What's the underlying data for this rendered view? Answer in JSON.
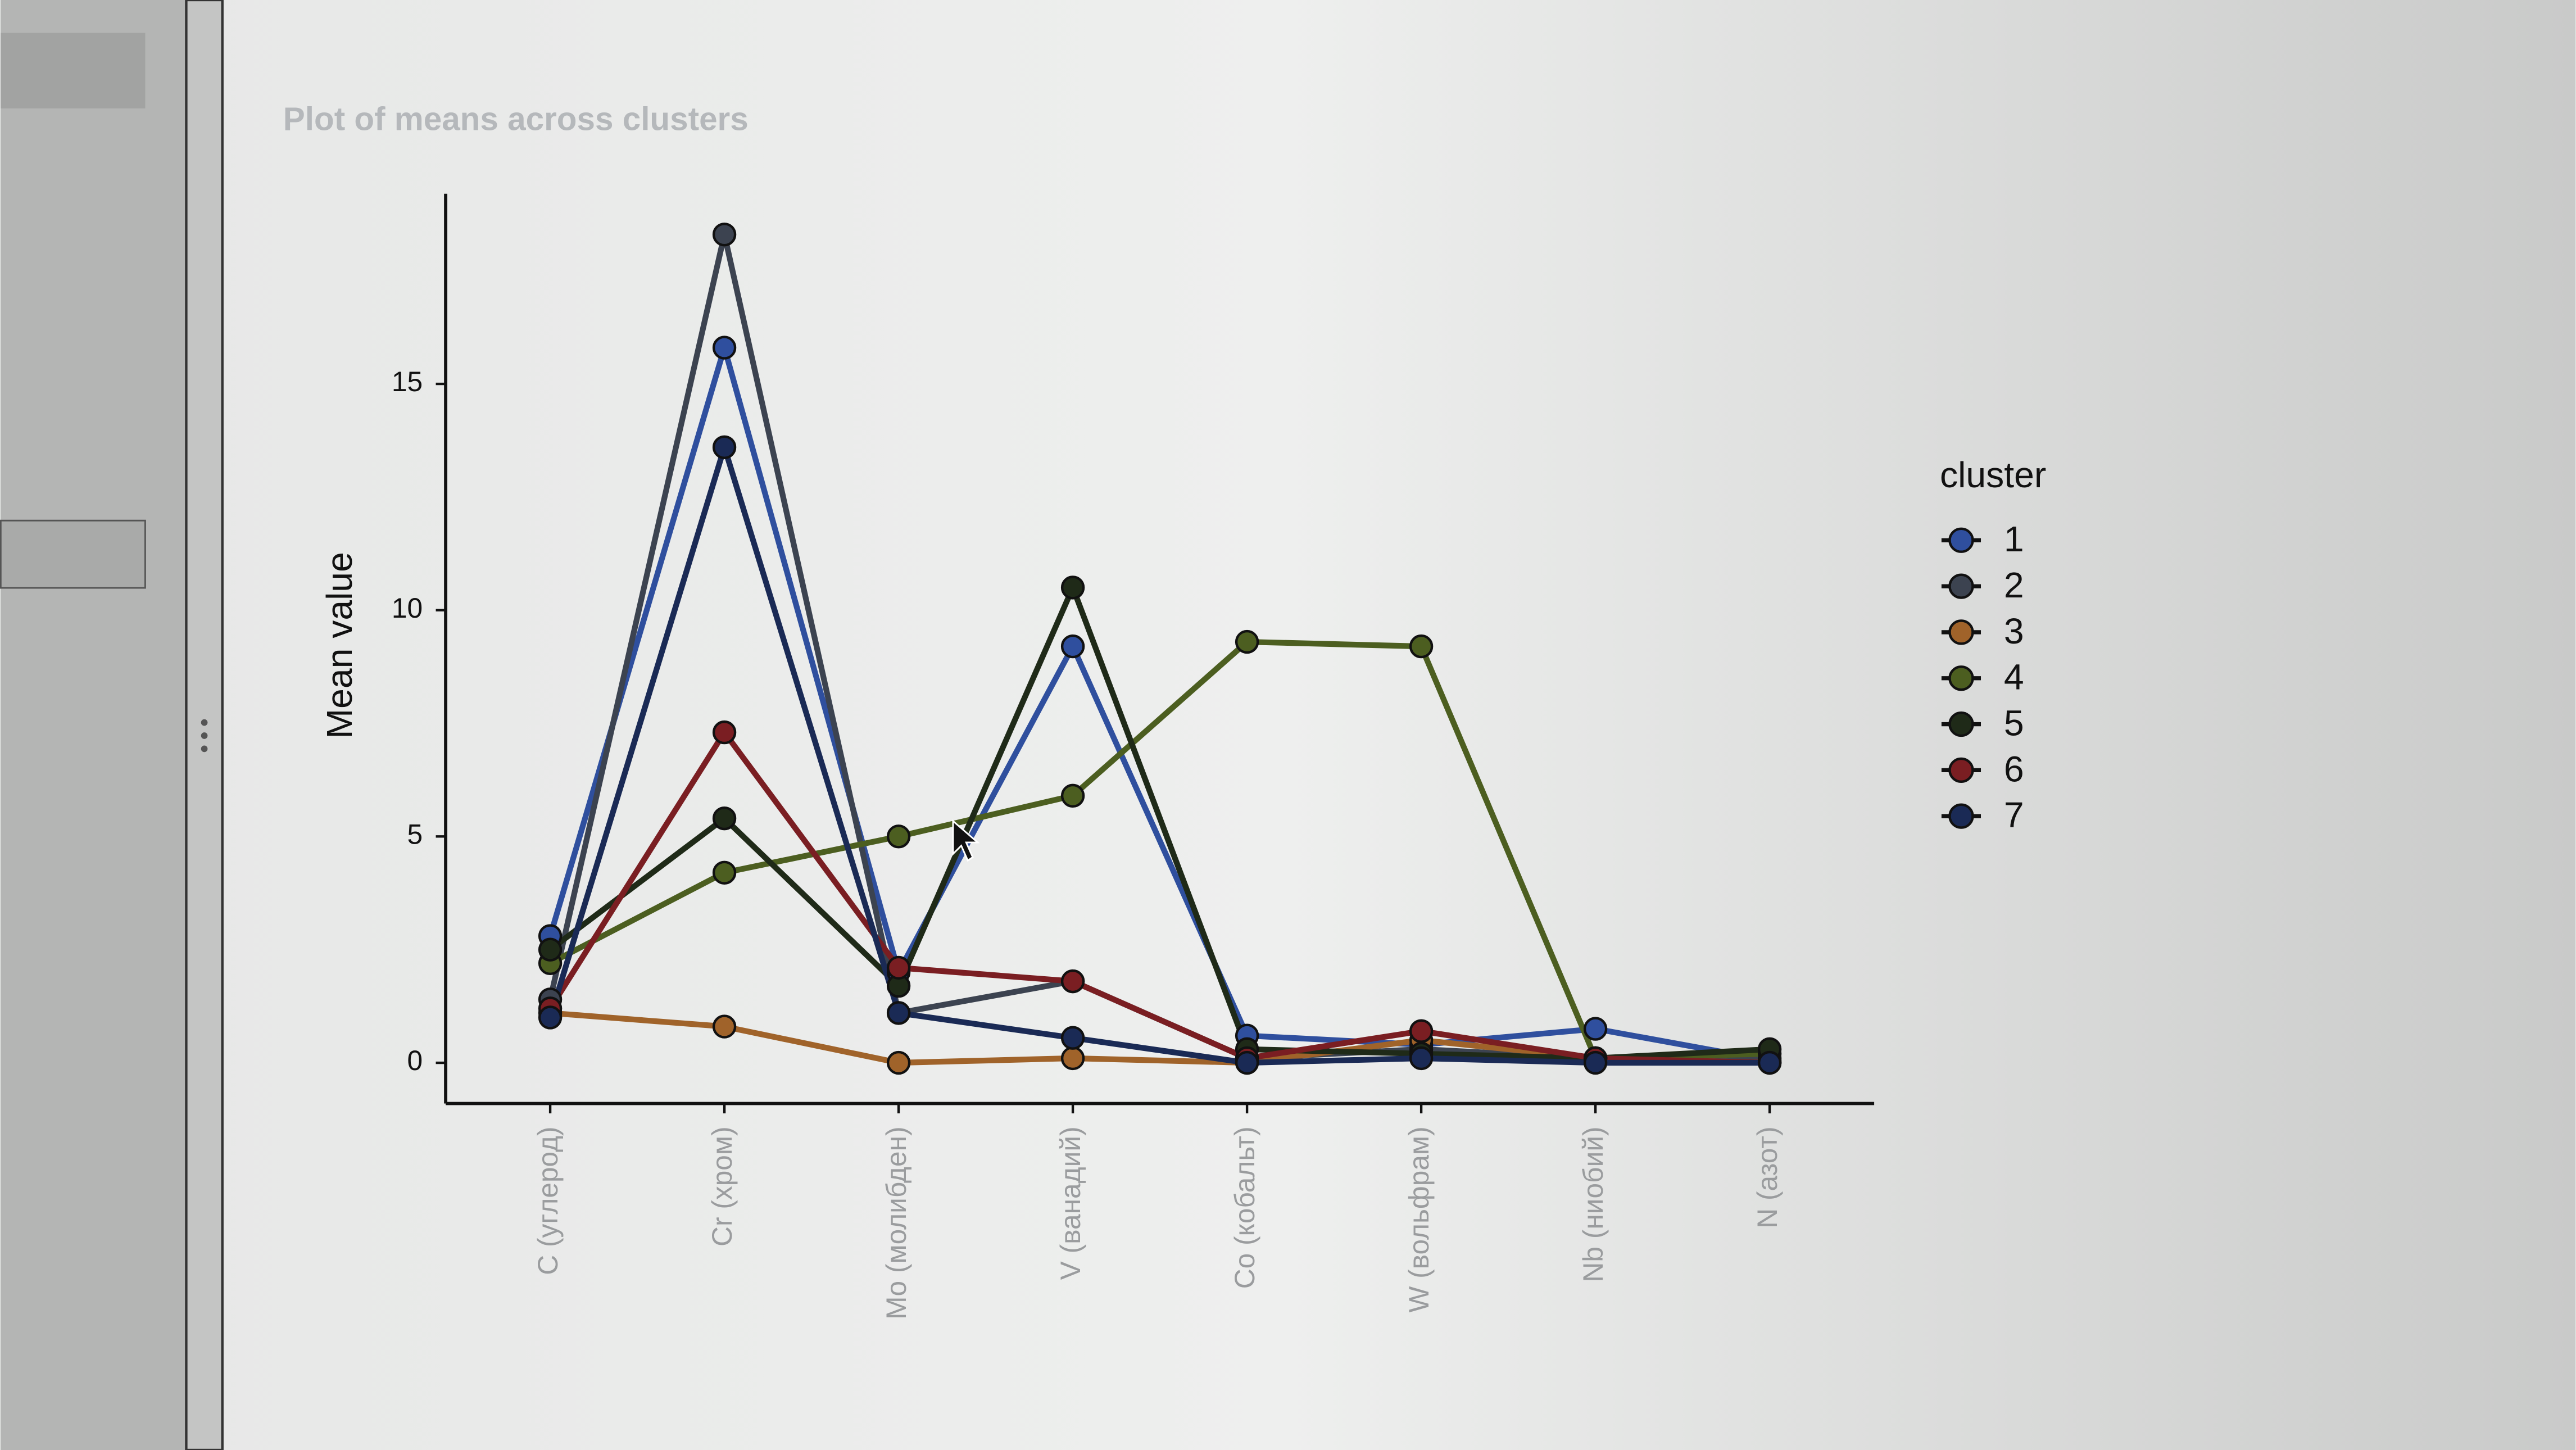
{
  "chart_data": {
    "type": "line",
    "title": "Plot of means across clusters",
    "y_label": "Mean value",
    "legend_title": "cluster",
    "legend": "right",
    "categories": [
      "C (углерод)",
      "Cr (хром)",
      "Mo (молибден)",
      "V (ванадий)",
      "Co (кобальт)",
      "W (вольфрам)",
      "Nb (ниобий)",
      "N (азот)"
    ],
    "ylim": [
      -0.9,
      19.2
    ],
    "yticks": [
      0,
      5,
      10,
      15
    ],
    "series": [
      {
        "name": "1",
        "color": "#2f4f9e",
        "values": [
          2.8,
          15.8,
          2.0,
          9.2,
          0.6,
          0.4,
          0.75,
          0.05
        ]
      },
      {
        "name": "2",
        "color": "#3c4350",
        "values": [
          1.4,
          18.3,
          1.1,
          1.8,
          0.1,
          0.3,
          0.1,
          0.1
        ]
      },
      {
        "name": "3",
        "color": "#a0632a",
        "values": [
          1.1,
          0.8,
          0.0,
          0.1,
          0.0,
          0.5,
          0.1,
          0.0
        ]
      },
      {
        "name": "4",
        "color": "#4c5e20",
        "values": [
          2.2,
          4.2,
          5.0,
          5.9,
          9.3,
          9.2,
          0.1,
          0.2
        ]
      },
      {
        "name": "5",
        "color": "#1f2a18",
        "values": [
          2.5,
          5.4,
          1.7,
          10.5,
          0.3,
          0.2,
          0.1,
          0.3
        ]
      },
      {
        "name": "6",
        "color": "#7a1e22",
        "values": [
          1.2,
          7.3,
          2.1,
          1.8,
          0.1,
          0.7,
          0.1,
          0.0
        ]
      },
      {
        "name": "7",
        "color": "#1a2a55",
        "values": [
          1.0,
          13.6,
          1.1,
          0.55,
          0.0,
          0.1,
          0.0,
          0.0
        ]
      }
    ]
  }
}
